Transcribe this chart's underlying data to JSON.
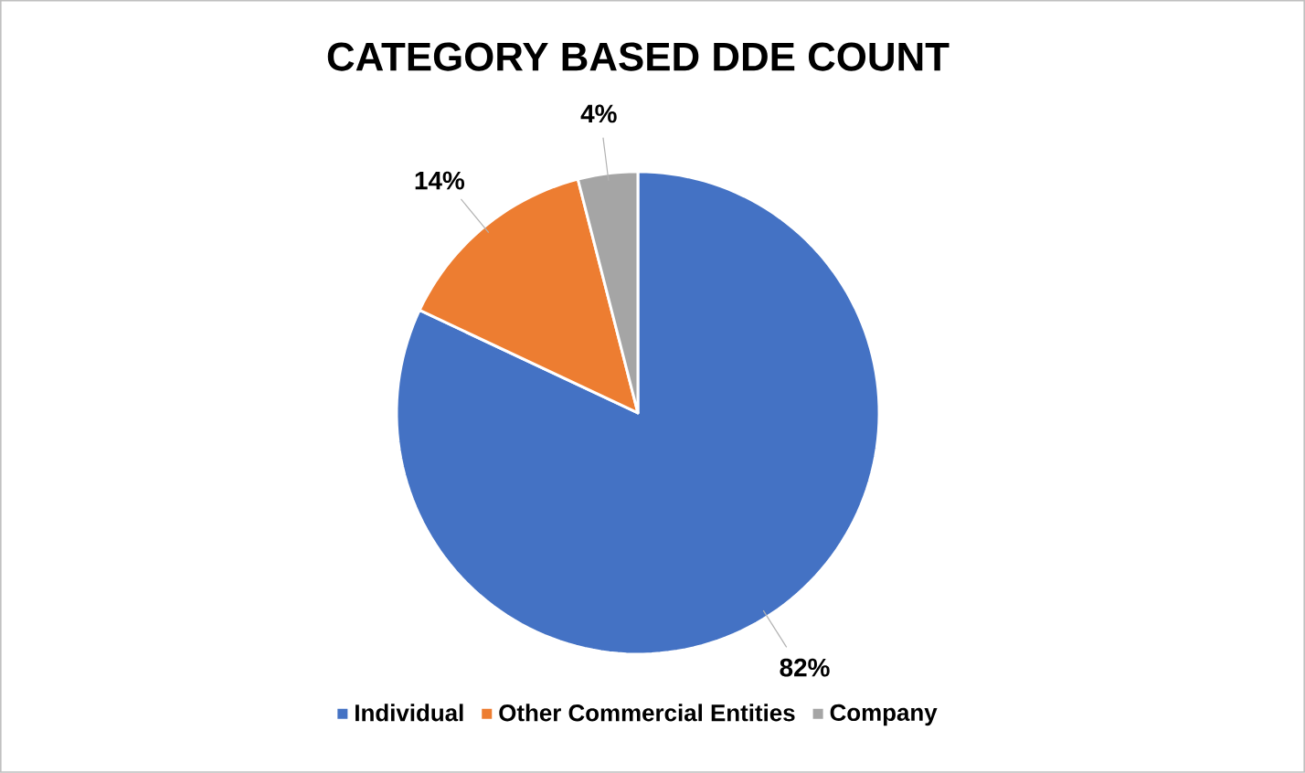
{
  "chart_data": {
    "type": "pie",
    "title": "CATEGORY BASED DDE COUNT",
    "categories": [
      "Individual",
      "Other Commercial Entities",
      "Company"
    ],
    "values": [
      82,
      14,
      4
    ],
    "colors": [
      "#4472c4",
      "#ed7d31",
      "#a5a5a5"
    ],
    "value_labels": [
      "82%",
      "14%",
      "4%"
    ],
    "legend": "bottom"
  }
}
